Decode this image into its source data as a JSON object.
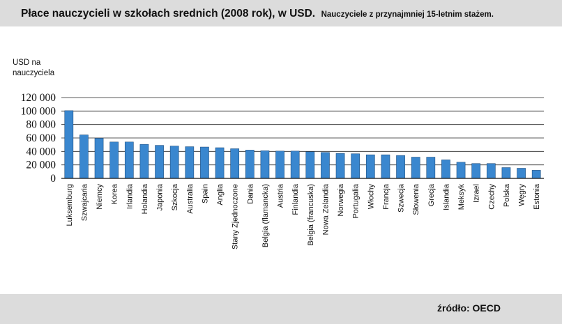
{
  "header": {
    "title": "Płace nauczycieli w szkołach srednich (2008 rok), w USD.",
    "subtitle": "Nauczyciele z przynajmniej 15-letnim stażem."
  },
  "footer": {
    "source": "źródło: OECD"
  },
  "colors": {
    "bar": "#3a87cf",
    "bar_edge": "#1f4f80",
    "highlight_label": "#c0252a",
    "panel": "#dcdcdc"
  },
  "chart_data": {
    "type": "bar",
    "title": "Płace nauczycieli w szkołach srednich (2008 rok), w USD.",
    "subtitle": "Nauczyciele z przynajmniej 15-letnim stażem.",
    "ylabel": "USD na nauczyciela",
    "xlabel": "",
    "ylim": [
      0,
      120000
    ],
    "yticks": [
      0,
      20000,
      40000,
      60000,
      80000,
      100000,
      120000
    ],
    "ytick_labels": [
      "0",
      "20 000",
      "40 000",
      "60 000",
      "80 000",
      "100 000",
      "120 000"
    ],
    "grid": true,
    "highlight": "Polska",
    "categories": [
      "Luksemburg",
      "Szwajcaria",
      "Niemcy",
      "Korea",
      "Irlandia",
      "Holandia",
      "Japonia",
      "Szkocja",
      "Australia",
      "Spain",
      "Anglia",
      "Stany Zjednoczone",
      "Dania",
      "Belgia (flamancka)",
      "Austria",
      "Finlandia",
      "Belgia (francuska)",
      "Nowa Zelandia",
      "Norwegia",
      "Portugalia",
      "Włochy",
      "Francja",
      "Szwecja",
      "Słowenia",
      "Grecja",
      "Islandia",
      "Meksyk",
      "Izrael",
      "Czechy",
      "Polska",
      "Węgry",
      "Estonia"
    ],
    "values": [
      100500,
      64500,
      59500,
      54000,
      54000,
      50500,
      49000,
      48000,
      47000,
      46500,
      45500,
      44000,
      42000,
      41000,
      40500,
      40500,
      39500,
      38500,
      37000,
      36500,
      35000,
      35000,
      34000,
      31500,
      31500,
      27500,
      24000,
      22000,
      22000,
      16000,
      15000,
      12000
    ]
  }
}
